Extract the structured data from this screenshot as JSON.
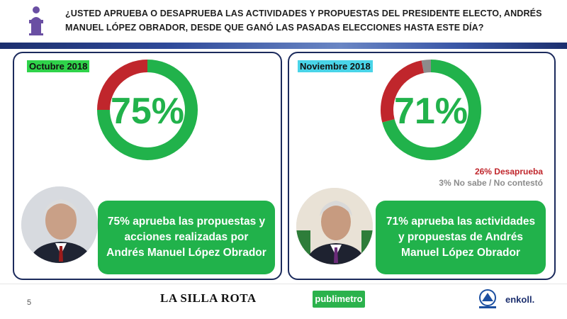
{
  "header": {
    "question": "¿USTED APRUEBA O DESAPRUEBA LAS ACTIVIDADES Y PROPUESTAS DEL PRESIDENTE ELECTO, ANDRÉS MANUEL LÓPEZ OBRADOR, DESDE QUE GANÓ LAS PASADAS ELECCIONES HASTA ESTE DÍA?",
    "icon": "podium-speaker-icon"
  },
  "colors": {
    "approve": "#21b24b",
    "disapprove": "#c0262c",
    "no_answer": "#8c8c8c",
    "frame": "#1b2a5c"
  },
  "chart_data": [
    {
      "type": "pie",
      "title": "Octubre 2018",
      "center_label": "75%",
      "categories": [
        "Aprueba",
        "Desaprueba"
      ],
      "values": [
        75,
        25
      ],
      "colors": [
        "#21b24b",
        "#c0262c"
      ],
      "caption": "75% aprueba las propuestas y acciones realizadas por Andrés Manuel López Obrador"
    },
    {
      "type": "pie",
      "title": "Noviembre 2018",
      "center_label": "71%",
      "categories": [
        "Aprueba",
        "Desaprueba",
        "No sabe / No contestó"
      ],
      "values": [
        71,
        26,
        3
      ],
      "colors": [
        "#21b24b",
        "#c0262c",
        "#8c8c8c"
      ],
      "stat_labels": [
        "26% Desaprueba",
        "3% No sabe / No contestó"
      ],
      "caption": "71% aprueba las actividades y propuestas de Andrés Manuel López Obrador"
    }
  ],
  "footer": {
    "page_number": "5",
    "logos": {
      "lasilla": "LA SILLA ROTA",
      "publimetro": "publimetro",
      "enkoll": "enkoll."
    }
  }
}
